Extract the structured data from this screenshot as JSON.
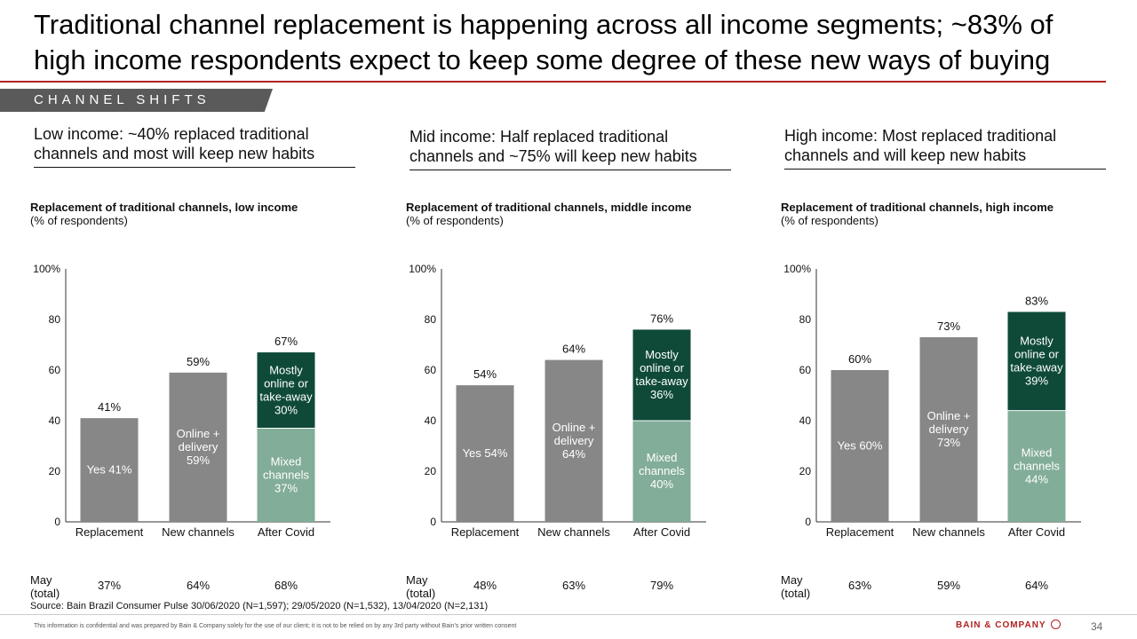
{
  "title": "Traditional channel replacement is happening across all income segments; ~83% of high income respondents expect to keep some degree of these new ways of buying",
  "section_tab": "CHANNEL SHIFTS",
  "colors": {
    "accent": "#b22222",
    "grey_bar": "#878787",
    "dark_green": "#0f4a38",
    "light_green": "#82ad98"
  },
  "panels": [
    {
      "subhead": "Low income: ~40% replaced traditional channels and most will keep new habits"
    },
    {
      "subhead": "Mid income: Half replaced traditional channels and ~75% will keep new habits"
    },
    {
      "subhead": "High income: Most replaced traditional channels and will keep new habits"
    }
  ],
  "chart_data": [
    {
      "type": "bar",
      "title": "Replacement of traditional channels, low income",
      "subtitle": "(% of respondents)",
      "ylim": [
        0,
        100
      ],
      "yticks": [
        "0",
        "20",
        "40",
        "60",
        "80",
        "100%"
      ],
      "categories": [
        "Replacement",
        "New channels",
        "After Covid"
      ],
      "bars": [
        {
          "category": "Replacement",
          "total": 41,
          "total_label": "41%",
          "segments": [
            {
              "value": 41,
              "color": "grey",
              "label": "Yes 41%"
            }
          ]
        },
        {
          "category": "New channels",
          "total": 59,
          "total_label": "59%",
          "segments": [
            {
              "value": 59,
              "color": "grey",
              "label": "Online +\ndelivery\n59%"
            }
          ]
        },
        {
          "category": "After Covid",
          "total": 67,
          "total_label": "67%",
          "segments": [
            {
              "value": 37,
              "color": "light_green",
              "label": "Mixed\nchannels\n37%"
            },
            {
              "value": 30,
              "color": "dark_green",
              "label": "Mostly\nonline or\ntake-away\n30%"
            }
          ]
        }
      ],
      "may_label": "May\n(total)",
      "may_values": [
        "37%",
        "64%",
        "68%"
      ]
    },
    {
      "type": "bar",
      "title": "Replacement of traditional channels, middle income",
      "subtitle": "(% of respondents)",
      "ylim": [
        0,
        100
      ],
      "yticks": [
        "0",
        "20",
        "40",
        "60",
        "80",
        "100%"
      ],
      "categories": [
        "Replacement",
        "New channels",
        "After Covid"
      ],
      "bars": [
        {
          "category": "Replacement",
          "total": 54,
          "total_label": "54%",
          "segments": [
            {
              "value": 54,
              "color": "grey",
              "label": "Yes 54%"
            }
          ]
        },
        {
          "category": "New channels",
          "total": 64,
          "total_label": "64%",
          "segments": [
            {
              "value": 64,
              "color": "grey",
              "label": "Online +\ndelivery\n64%"
            }
          ]
        },
        {
          "category": "After Covid",
          "total": 76,
          "total_label": "76%",
          "segments": [
            {
              "value": 40,
              "color": "light_green",
              "label": "Mixed\nchannels\n40%"
            },
            {
              "value": 36,
              "color": "dark_green",
              "label": "Mostly\nonline or\ntake-away\n36%"
            }
          ]
        }
      ],
      "may_label": "May\n(total)",
      "may_values": [
        "48%",
        "63%",
        "79%"
      ]
    },
    {
      "type": "bar",
      "title": "Replacement of traditional channels, high income",
      "subtitle": "(% of respondents)",
      "ylim": [
        0,
        100
      ],
      "yticks": [
        "0",
        "20",
        "40",
        "60",
        "80",
        "100%"
      ],
      "categories": [
        "Replacement",
        "New channels",
        "After Covid"
      ],
      "bars": [
        {
          "category": "Replacement",
          "total": 60,
          "total_label": "60%",
          "segments": [
            {
              "value": 60,
              "color": "grey",
              "label": "Yes 60%"
            }
          ]
        },
        {
          "category": "New channels",
          "total": 73,
          "total_label": "73%",
          "segments": [
            {
              "value": 73,
              "color": "grey",
              "label": "Online +\ndelivery\n73%"
            }
          ]
        },
        {
          "category": "After Covid",
          "total": 83,
          "total_label": "83%",
          "segments": [
            {
              "value": 44,
              "color": "light_green",
              "label": "Mixed\nchannels\n44%"
            },
            {
              "value": 39,
              "color": "dark_green",
              "label": "Mostly\nonline or\ntake-away\n39%"
            }
          ]
        }
      ],
      "may_label": "May\n(total)",
      "may_values": [
        "63%",
        "59%",
        "64%"
      ]
    }
  ],
  "source": "Source: Bain Brazil Consumer Pulse 30/06/2020 (N=1,597); 29/05/2020 (N=1,532), 13/04/2020 (N=2,131)",
  "disclaimer": "This information is confidential and was prepared by Bain & Company solely for the use of our client; it is not to be relied on by any 3rd party without Bain's prior written consent",
  "brand": "BAIN & COMPANY",
  "page_number": "34"
}
